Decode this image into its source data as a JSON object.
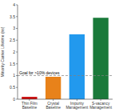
{
  "chart_data": {
    "type": "bar",
    "categories": [
      "Thin Film\nBaseline",
      "Crystal\nBaseline",
      "Impurity\nManagement",
      "S-vacancy\nManagement"
    ],
    "values": [
      0.1,
      0.95,
      2.75,
      3.45
    ],
    "colors": [
      "#cc1111",
      "#e8821a",
      "#2299ee",
      "#1a7a3a"
    ],
    "ylabel": "Minority Carrier Lifetime (ns)",
    "ylim": [
      0,
      4.0
    ],
    "yticks": [
      0,
      0.5,
      1,
      1.5,
      2,
      2.5,
      3,
      3.5,
      4
    ],
    "annotations": [
      {
        "text": "Goal for >10% devices",
        "y": 1.0
      }
    ],
    "grid": false
  }
}
